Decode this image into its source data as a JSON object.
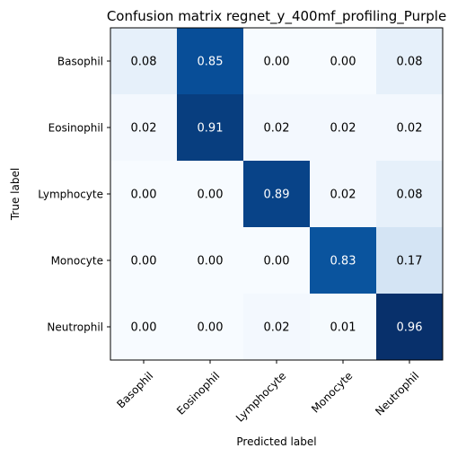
{
  "chart_data": {
    "type": "heatmap",
    "title": "Confusion matrix regnet_y_400mf_profiling_Purple",
    "xlabel": "Predicted label",
    "ylabel": "True label",
    "x_categories": [
      "Basophil",
      "Eosinophil",
      "Lymphocyte",
      "Monocyte",
      "Neutrophil"
    ],
    "y_categories": [
      "Basophil",
      "Eosinophil",
      "Lymphocyte",
      "Monocyte",
      "Neutrophil"
    ],
    "values": [
      [
        0.08,
        0.85,
        0.0,
        0.0,
        0.08
      ],
      [
        0.02,
        0.91,
        0.02,
        0.02,
        0.02
      ],
      [
        0.0,
        0.0,
        0.89,
        0.02,
        0.08
      ],
      [
        0.0,
        0.0,
        0.0,
        0.83,
        0.17
      ],
      [
        0.0,
        0.0,
        0.02,
        0.01,
        0.96
      ]
    ],
    "labels": [
      [
        "0.08",
        "0.85",
        "0.00",
        "0.00",
        "0.08"
      ],
      [
        "0.02",
        "0.91",
        "0.02",
        "0.02",
        "0.02"
      ],
      [
        "0.00",
        "0.00",
        "0.89",
        "0.02",
        "0.08"
      ],
      [
        "0.00",
        "0.00",
        "0.00",
        "0.83",
        "0.17"
      ],
      [
        "0.00",
        "0.00",
        "0.02",
        "0.01",
        "0.96"
      ]
    ],
    "colormap": "Blues",
    "x_tick_rotation": 45,
    "grid": false
  }
}
